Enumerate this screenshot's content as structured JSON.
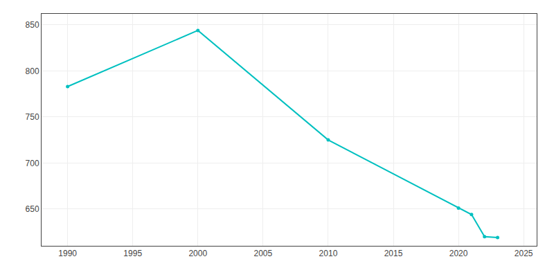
{
  "chart_data": {
    "type": "line",
    "x": [
      1990,
      2000,
      2010,
      2020,
      2021,
      2022,
      2023
    ],
    "values": [
      783,
      844,
      725,
      651,
      644,
      620,
      619
    ],
    "color": "#00C0C0",
    "marker": "circle",
    "xlim": [
      1988,
      2026
    ],
    "ylim": [
      610,
      862
    ],
    "xticks": [
      1990,
      1995,
      2000,
      2005,
      2010,
      2015,
      2020,
      2025
    ],
    "yticks": [
      650,
      700,
      750,
      800,
      850
    ],
    "grid": true
  }
}
